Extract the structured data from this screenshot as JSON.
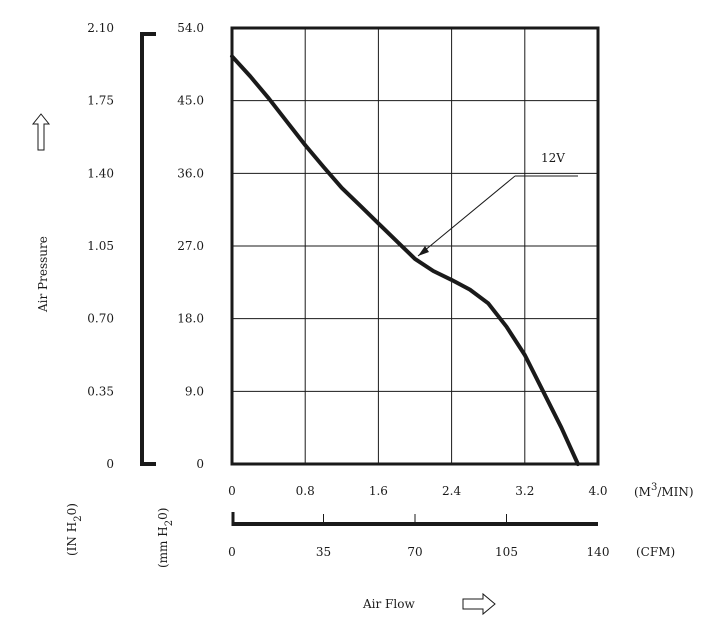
{
  "chart_data": {
    "type": "line",
    "series": [
      {
        "name": "12V",
        "x": [
          0,
          0.2,
          0.4,
          0.6,
          0.8,
          1.0,
          1.2,
          1.4,
          1.6,
          1.8,
          2.0,
          2.2,
          2.4,
          2.6,
          2.8,
          3.0,
          3.2,
          3.4,
          3.6,
          3.78
        ],
        "y": [
          50.5,
          48.0,
          45.3,
          42.4,
          39.5,
          36.8,
          34.2,
          32.0,
          29.8,
          27.6,
          25.4,
          23.9,
          22.8,
          21.6,
          19.9,
          17.0,
          13.5,
          9.0,
          4.5,
          0
        ]
      }
    ],
    "x_axis": {
      "unit": "(M 3/MIN)",
      "unit_base": "(M",
      "unit_sup": "3",
      "unit_rest": "/MIN)",
      "range": [
        0,
        4.0
      ],
      "ticks": [
        "0",
        "0.8",
        "1.6",
        "2.4",
        "3.2",
        "4.0"
      ]
    },
    "x_axis_secondary": {
      "unit": "(CFM)",
      "range": [
        0,
        140
      ],
      "ticks": [
        "0",
        "35",
        "70",
        "105",
        "140"
      ]
    },
    "y_axis": {
      "unit": "(mm H20)",
      "unit_base": "(mm H",
      "unit_sub": "2",
      "unit_rest": "0)",
      "range": [
        0,
        54.0
      ],
      "ticks": [
        "0",
        "9.0",
        "18.0",
        "27.0",
        "36.0",
        "45.0",
        "54.0"
      ]
    },
    "y_axis_secondary": {
      "unit": "(IN H20)",
      "unit_base": "(IN H",
      "unit_sub": "2",
      "unit_rest": "0)",
      "range": [
        0,
        2.1
      ],
      "ticks": [
        "0",
        "0.35",
        "0.70",
        "1.05",
        "1.40",
        "1.75",
        "2.10"
      ]
    },
    "xlabel": "Air Flow",
    "ylabel": "Air Pressure",
    "annotation": "12V",
    "grid": true
  }
}
